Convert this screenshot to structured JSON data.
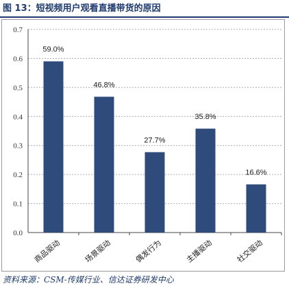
{
  "figure": {
    "title": "图 13：短视频用户观看直播带货的原因",
    "source": "资料来源：CSM-传媒行业、信达证券研发中心"
  },
  "colors": {
    "bar": "#2f4b7c",
    "grid": "#a8a8a8",
    "title": "#1f3a6e"
  },
  "chart_data": {
    "type": "bar",
    "categories": [
      "商品驱动",
      "场景驱动",
      "偶发行为",
      "主播驱动",
      "社交驱动"
    ],
    "values": [
      0.59,
      0.468,
      0.277,
      0.358,
      0.166
    ],
    "data_labels": [
      "59.0%",
      "46.8%",
      "27.7%",
      "35.8%",
      "16.6%"
    ],
    "yticks": [
      "0.0",
      "0.1",
      "0.2",
      "0.3",
      "0.4",
      "0.5",
      "0.6",
      "0.7"
    ],
    "ylim": [
      0,
      0.7
    ],
    "grid": true,
    "title": "",
    "xlabel": "",
    "ylabel": ""
  }
}
